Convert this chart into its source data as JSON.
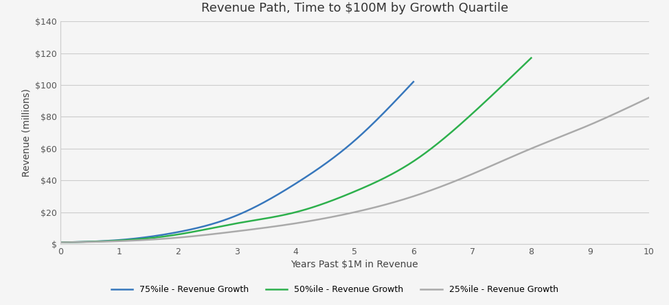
{
  "title": "Revenue Path, Time to $100M by Growth Quartile",
  "xlabel": "Years Past $1M in Revenue",
  "ylabel": "Revenue (millions)",
  "xlim": [
    0,
    10
  ],
  "ylim": [
    0,
    140
  ],
  "yticks": [
    0,
    20,
    40,
    60,
    80,
    100,
    120,
    140
  ],
  "xticks": [
    0,
    1,
    2,
    3,
    4,
    5,
    6,
    7,
    8,
    9,
    10
  ],
  "background_color": "#f5f5f5",
  "grid_color": "#cccccc",
  "series": [
    {
      "label": "75%ile - Revenue Growth",
      "color": "#3777bc",
      "x_points": [
        0,
        1,
        2,
        3,
        4,
        5,
        6
      ],
      "y_points": [
        1.0,
        2.5,
        7.5,
        18.0,
        38.0,
        65.0,
        102.0
      ]
    },
    {
      "label": "50%ile - Revenue Growth",
      "color": "#2db04c",
      "x_points": [
        0,
        1,
        2,
        3,
        4,
        5,
        6,
        7,
        8
      ],
      "y_points": [
        1.0,
        2.2,
        6.0,
        13.0,
        20.0,
        33.0,
        52.0,
        82.0,
        117.0
      ]
    },
    {
      "label": "25%ile - Revenue Growth",
      "color": "#aaaaaa",
      "x_points": [
        0,
        1,
        2,
        3,
        4,
        5,
        6,
        7,
        8,
        9,
        10
      ],
      "y_points": [
        1.0,
        1.8,
        4.0,
        8.0,
        13.0,
        20.0,
        30.0,
        44.0,
        60.0,
        75.0,
        92.0
      ]
    }
  ],
  "title_fontsize": 13,
  "axis_label_fontsize": 10,
  "tick_fontsize": 9,
  "legend_fontsize": 9,
  "line_width": 1.8
}
